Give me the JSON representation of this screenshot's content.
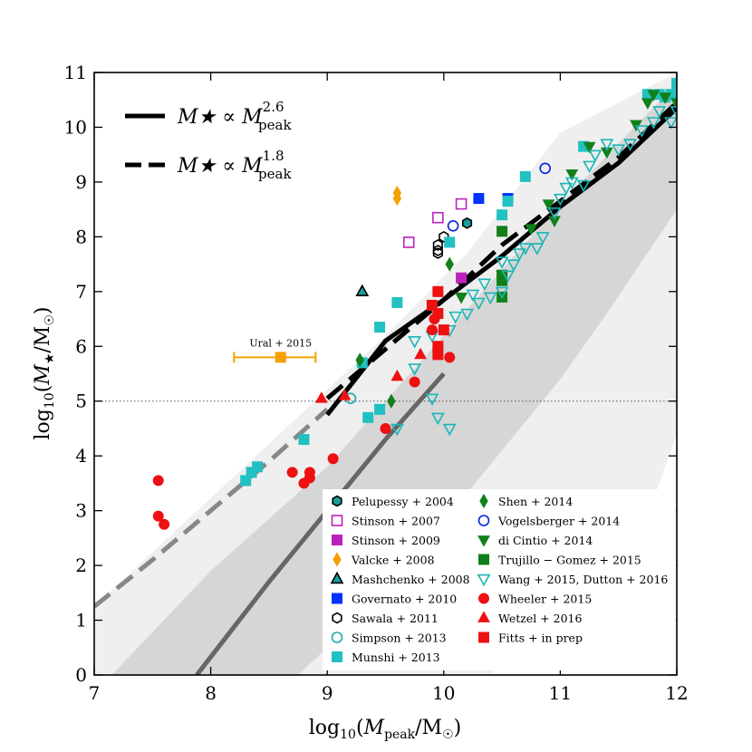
{
  "chart_data": {
    "type": "scatter",
    "xlabel": "log10(Mpeak/M☉)",
    "ylabel": "log10(M★/M☉)",
    "xlim": [
      7,
      12
    ],
    "ylim": [
      0,
      11
    ],
    "xticks": [
      "7",
      "8",
      "9",
      "10",
      "11",
      "12"
    ],
    "yticks": [
      "0",
      "1",
      "2",
      "3",
      "4",
      "5",
      "6",
      "7",
      "8",
      "9",
      "10",
      "11"
    ],
    "reference_line_y": 5,
    "bands": {
      "outer": [
        [
          7.0,
          0.0
        ],
        [
          7.0,
          1.25
        ],
        [
          9.5,
          6.2
        ],
        [
          10.2,
          7.7
        ],
        [
          11.0,
          9.9
        ],
        [
          12.0,
          11.0
        ],
        [
          12.0,
          4.4
        ],
        [
          11.6,
          2.0
        ],
        [
          11.0,
          1.25
        ],
        [
          10.4,
          0.0
        ]
      ],
      "inner": [
        [
          7.15,
          0.0
        ],
        [
          8.0,
          1.9
        ],
        [
          9.0,
          3.8
        ],
        [
          10.0,
          6.2
        ],
        [
          11.0,
          8.6
        ],
        [
          12.0,
          10.8
        ],
        [
          12.0,
          8.5
        ],
        [
          11.4,
          6.6
        ],
        [
          11.0,
          5.4
        ],
        [
          10.0,
          2.8
        ],
        [
          9.0,
          0.5
        ],
        [
          8.75,
          0.0
        ]
      ]
    },
    "lines": [
      {
        "name": "M★ ∝ Mpeak^2.6",
        "style": "solid",
        "points": [
          [
            9.0,
            4.75
          ],
          [
            9.5,
            6.1
          ],
          [
            10.0,
            6.85
          ],
          [
            10.5,
            7.65
          ],
          [
            11.0,
            8.55
          ],
          [
            11.5,
            9.35
          ],
          [
            12.0,
            10.35
          ]
        ]
      },
      {
        "name": "M★ ∝ Mpeak^1.8",
        "style": "dashed",
        "points": [
          [
            9.0,
            5.05
          ],
          [
            9.5,
            5.95
          ],
          [
            10.0,
            6.85
          ],
          [
            10.5,
            7.85
          ],
          [
            11.0,
            8.65
          ],
          [
            11.5,
            9.45
          ],
          [
            12.0,
            10.45
          ]
        ]
      }
    ],
    "extrapolated_lines": [
      {
        "of": "M★ ∝ Mpeak^2.6",
        "style": "solid",
        "color": "#666666",
        "points": [
          [
            7.88,
            0.0
          ],
          [
            8.5,
            1.7
          ],
          [
            9.0,
            3.0
          ],
          [
            9.5,
            4.3
          ],
          [
            10.0,
            5.5
          ]
        ]
      },
      {
        "of": "M★ ∝ Mpeak^1.8",
        "style": "dashed",
        "color": "#888888",
        "points": [
          [
            7.0,
            1.25
          ],
          [
            7.5,
            2.1
          ],
          [
            8.0,
            3.0
          ],
          [
            8.5,
            3.9
          ],
          [
            9.0,
            4.85
          ]
        ]
      }
    ],
    "line_legend": [
      {
        "style": "solid",
        "text": "M★ ∝ M",
        "sub": "peak",
        "sup": "2.6"
      },
      {
        "style": "dashed",
        "text": "M★ ∝ M",
        "sub": "peak",
        "sup": "1.8"
      }
    ],
    "annotation": {
      "text": "Ural + 2015",
      "x": 8.6,
      "y": 5.8,
      "xerr_low": 8.2,
      "xerr_high": 8.9,
      "color": "#f5a000"
    },
    "series": [
      {
        "name": "Pelupessy + 2004",
        "marker": "hexagon",
        "fill": "#1a9e9e",
        "stroke": "#000000",
        "points": [
          [
            10.2,
            8.25
          ]
        ]
      },
      {
        "name": "Stinson + 2007",
        "marker": "square-open",
        "fill": "none",
        "stroke": "#bb22bb",
        "points": [
          [
            9.7,
            7.9
          ],
          [
            9.95,
            8.35
          ],
          [
            10.15,
            8.6
          ]
        ]
      },
      {
        "name": "Stinson + 2009",
        "marker": "square",
        "fill": "#bb22bb",
        "stroke": "#bb22bb",
        "points": [
          [
            10.15,
            7.25
          ]
        ]
      },
      {
        "name": "Valcke + 2008",
        "marker": "diamond",
        "fill": "#f5a000",
        "stroke": "#f5a000",
        "points": [
          [
            9.6,
            8.8
          ],
          [
            9.6,
            8.7
          ]
        ]
      },
      {
        "name": "Mashchenko + 2008",
        "marker": "triangle-up",
        "fill": "#1a9e9e",
        "stroke": "#000000",
        "points": [
          [
            9.3,
            7.0
          ]
        ]
      },
      {
        "name": "Governato + 2010",
        "marker": "square",
        "fill": "#0033ff",
        "stroke": "#0033ff",
        "points": [
          [
            10.3,
            8.7
          ],
          [
            10.55,
            8.7
          ]
        ]
      },
      {
        "name": "Sawala + 2011",
        "marker": "hexagon-open",
        "fill": "none",
        "stroke": "#000000",
        "points": [
          [
            9.95,
            7.7
          ],
          [
            9.95,
            7.85
          ],
          [
            10.0,
            8.0
          ],
          [
            9.95,
            7.75
          ]
        ]
      },
      {
        "name": "Simpson + 2013",
        "marker": "circle-open",
        "fill": "none",
        "stroke": "#1aaaaa",
        "points": [
          [
            9.2,
            5.05
          ]
        ]
      },
      {
        "name": "Munshi + 2013",
        "marker": "square",
        "fill": "#22c1c1",
        "stroke": "#22c1c1",
        "points": [
          [
            8.3,
            3.55
          ],
          [
            8.35,
            3.7
          ],
          [
            8.4,
            3.8
          ],
          [
            8.8,
            4.3
          ],
          [
            9.35,
            4.7
          ],
          [
            9.45,
            4.85
          ],
          [
            9.3,
            5.7
          ],
          [
            9.45,
            6.35
          ],
          [
            9.6,
            6.8
          ],
          [
            10.05,
            7.9
          ],
          [
            10.5,
            8.4
          ],
          [
            10.55,
            8.65
          ],
          [
            10.7,
            9.1
          ],
          [
            11.2,
            9.65
          ],
          [
            11.75,
            10.6
          ],
          [
            11.85,
            10.6
          ],
          [
            11.9,
            10.55
          ],
          [
            11.95,
            10.6
          ],
          [
            12.0,
            10.8
          ]
        ]
      },
      {
        "name": "Shen + 2014",
        "marker": "diamond",
        "fill": "#11801a",
        "stroke": "#11801a",
        "points": [
          [
            9.28,
            5.75
          ],
          [
            9.55,
            5.0
          ],
          [
            10.05,
            7.5
          ]
        ]
      },
      {
        "name": "Vogelsberger + 2014",
        "marker": "circle-open",
        "fill": "none",
        "stroke": "#0022dd",
        "points": [
          [
            10.08,
            8.2
          ],
          [
            10.87,
            9.25
          ]
        ]
      },
      {
        "name": "di Cintio + 2014",
        "marker": "triangle-down",
        "fill": "#11801a",
        "stroke": "#11801a",
        "points": [
          [
            10.15,
            6.9
          ],
          [
            10.5,
            7.3
          ],
          [
            10.75,
            8.15
          ],
          [
            10.9,
            8.6
          ],
          [
            10.95,
            8.3
          ],
          [
            11.1,
            9.15
          ],
          [
            11.25,
            9.65
          ],
          [
            11.4,
            9.55
          ],
          [
            11.65,
            10.05
          ],
          [
            11.75,
            10.45
          ],
          [
            11.8,
            10.6
          ],
          [
            11.9,
            10.55
          ],
          [
            12.0,
            10.45
          ]
        ]
      },
      {
        "name": "Trujillo − Gomez + 2015",
        "marker": "square",
        "fill": "#11801a",
        "stroke": "#11801a",
        "points": [
          [
            10.5,
            8.1
          ],
          [
            10.5,
            7.2
          ],
          [
            10.5,
            7.3
          ],
          [
            10.5,
            6.9
          ]
        ]
      },
      {
        "name": "Wang + 2015, Dutton + 2016",
        "marker": "triangle-down-open",
        "fill": "none",
        "stroke": "#1ab5b5",
        "points": [
          [
            9.6,
            4.5
          ],
          [
            9.75,
            5.6
          ],
          [
            9.9,
            5.05
          ],
          [
            9.95,
            4.7
          ],
          [
            10.05,
            4.5
          ],
          [
            9.75,
            6.1
          ],
          [
            9.9,
            6.2
          ],
          [
            10.05,
            6.3
          ],
          [
            10.1,
            6.55
          ],
          [
            10.2,
            6.6
          ],
          [
            10.3,
            6.8
          ],
          [
            10.4,
            6.9
          ],
          [
            10.5,
            7.0
          ],
          [
            10.55,
            7.3
          ],
          [
            10.6,
            7.5
          ],
          [
            10.65,
            7.7
          ],
          [
            10.7,
            7.8
          ],
          [
            10.8,
            7.8
          ],
          [
            10.85,
            8.0
          ],
          [
            10.95,
            8.45
          ],
          [
            11.0,
            8.7
          ],
          [
            11.05,
            8.9
          ],
          [
            11.1,
            9.0
          ],
          [
            11.2,
            8.95
          ],
          [
            11.25,
            9.3
          ],
          [
            11.3,
            9.5
          ],
          [
            11.4,
            9.7
          ],
          [
            11.5,
            9.6
          ],
          [
            11.6,
            9.7
          ],
          [
            11.7,
            9.95
          ],
          [
            11.8,
            10.1
          ],
          [
            11.85,
            10.3
          ],
          [
            11.95,
            10.1
          ],
          [
            12.0,
            10.3
          ],
          [
            10.25,
            6.95
          ],
          [
            10.35,
            7.15
          ],
          [
            10.5,
            7.55
          ]
        ]
      },
      {
        "name": "Wheeler + 2015",
        "marker": "circle",
        "fill": "#ee1111",
        "stroke": "#ee1111",
        "points": [
          [
            7.55,
            3.55
          ],
          [
            7.55,
            2.9
          ],
          [
            7.6,
            2.75
          ],
          [
            8.7,
            3.7
          ],
          [
            8.8,
            3.5
          ],
          [
            8.85,
            3.7
          ],
          [
            8.85,
            3.6
          ],
          [
            9.05,
            3.95
          ],
          [
            9.5,
            4.5
          ],
          [
            9.75,
            5.35
          ],
          [
            9.9,
            6.3
          ],
          [
            9.92,
            6.5
          ],
          [
            10.05,
            5.8
          ]
        ]
      },
      {
        "name": "Wetzel + 2016",
        "marker": "triangle-up",
        "fill": "#ee1111",
        "stroke": "#ee1111",
        "points": [
          [
            8.95,
            5.05
          ],
          [
            9.15,
            5.1
          ],
          [
            9.6,
            5.45
          ],
          [
            9.8,
            5.85
          ]
        ]
      },
      {
        "name": "Fitts + in prep",
        "marker": "square",
        "fill": "#ee1111",
        "stroke": "#ee1111",
        "points": [
          [
            9.9,
            6.75
          ],
          [
            9.95,
            7.0
          ],
          [
            9.95,
            6.6
          ],
          [
            10.0,
            6.3
          ],
          [
            9.95,
            6.0
          ],
          [
            9.95,
            5.85
          ]
        ]
      }
    ]
  }
}
